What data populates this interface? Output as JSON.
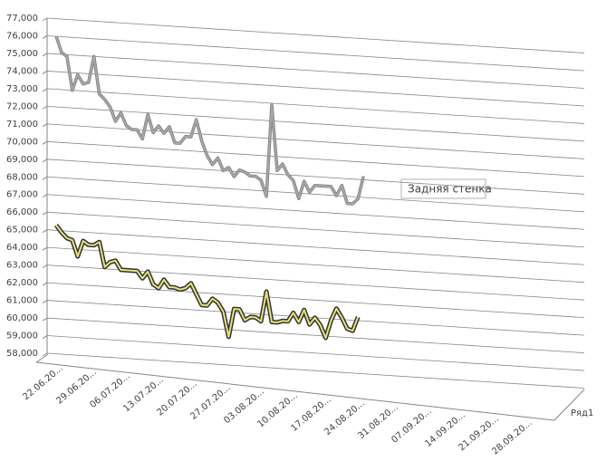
{
  "chart_data": {
    "type": "line",
    "annotation": "Задняя стенка",
    "categories": [
      "22.06.20...",
      null,
      null,
      null,
      null,
      null,
      null,
      "29.06.20...",
      null,
      null,
      null,
      null,
      null,
      null,
      "06.07.20...",
      null,
      null,
      null,
      null,
      null,
      null,
      "13.07.20...",
      null,
      null,
      null,
      null,
      null,
      null,
      "20.07.20...",
      null,
      null,
      null,
      null,
      null,
      null,
      "27.07.20...",
      null,
      null,
      null,
      null,
      null,
      null,
      "03.08.20...",
      null,
      null,
      null,
      null,
      null,
      null,
      "10.08.20...",
      null,
      null,
      null,
      null,
      null,
      null,
      "17.08.20...",
      null,
      null,
      null,
      null,
      null,
      null,
      "24.08.20...",
      null,
      null,
      null,
      null,
      null,
      null,
      "31.08.20...",
      null,
      null,
      null,
      null,
      null,
      null,
      "07.09.20...",
      null,
      null,
      null,
      null,
      null,
      null,
      "14.09.20...",
      null,
      null,
      null,
      null,
      null,
      null,
      "21.09.20...",
      null,
      null,
      null,
      null,
      null,
      null,
      "28.09.20..."
    ],
    "series": [
      {
        "color": "#a6a6a6",
        "values": [
          76000,
          75100,
          74900,
          73000,
          73900,
          73400,
          73500,
          75000,
          72900,
          72600,
          72200,
          71400,
          71900,
          71200,
          71000,
          71000,
          70500,
          71900,
          70900,
          71300,
          70900,
          71300,
          70400,
          70400,
          70800,
          70800,
          71800,
          70600,
          69800,
          69300,
          69700,
          69000,
          69200,
          68700,
          69100,
          69000,
          68800,
          68800,
          68600,
          67700,
          72900,
          69200,
          69600,
          69000,
          68700,
          67700,
          68700,
          68100,
          68500,
          68500,
          68500,
          68500,
          68000,
          68600,
          67600,
          67600,
          67900,
          69200,
          null,
          null,
          null,
          null,
          null,
          null,
          null,
          null,
          null,
          null,
          null,
          null,
          null,
          null,
          null,
          null,
          null,
          null,
          null,
          null,
          null,
          null,
          null,
          null,
          null,
          null,
          null,
          null,
          null,
          null,
          null,
          null,
          null,
          null,
          null,
          null,
          null,
          null,
          null,
          null,
          null
        ]
      },
      {
        "name": "Ряд1",
        "color": "#e8e27a",
        "values": [
          65300,
          64900,
          64600,
          64500,
          63600,
          64500,
          64300,
          64300,
          64500,
          63100,
          63400,
          63500,
          63000,
          63000,
          63000,
          63000,
          62600,
          63000,
          62300,
          62100,
          62600,
          62200,
          62200,
          62100,
          62200,
          62500,
          61900,
          61300,
          61300,
          61700,
          61500,
          61000,
          59600,
          61200,
          61200,
          60600,
          60800,
          60800,
          60600,
          62300,
          60600,
          60600,
          60700,
          60700,
          61200,
          60700,
          61400,
          60600,
          61000,
          60600,
          59900,
          60900,
          61600,
          61100,
          60500,
          60400,
          61200,
          null,
          null,
          null,
          null,
          null,
          null,
          null,
          null,
          null,
          null,
          null,
          null,
          null,
          null,
          null,
          null,
          null,
          null,
          null,
          null,
          null,
          null,
          null,
          null,
          null,
          null,
          null,
          null,
          null,
          null,
          null,
          null,
          null,
          null,
          null,
          null,
          null,
          null,
          null,
          null,
          null,
          null
        ]
      }
    ],
    "ylim": [
      58000,
      77000
    ],
    "yticks": [
      {
        "value": 58000,
        "label": "58,000"
      },
      {
        "value": 59000,
        "label": "59,000"
      },
      {
        "value": 60000,
        "label": "60,000"
      },
      {
        "value": 61000,
        "label": "61,000"
      },
      {
        "value": 62000,
        "label": "62,000"
      },
      {
        "value": 63000,
        "label": "63,000"
      },
      {
        "value": 64000,
        "label": "64,000"
      },
      {
        "value": 65000,
        "label": "65,000"
      },
      {
        "value": 66000,
        "label": "66,000"
      },
      {
        "value": 67000,
        "label": "67,000"
      },
      {
        "value": 68000,
        "label": "68,000"
      },
      {
        "value": 69000,
        "label": "69,000"
      },
      {
        "value": 70000,
        "label": "70,000"
      },
      {
        "value": 71000,
        "label": "71,000"
      },
      {
        "value": 72000,
        "label": "72,000"
      },
      {
        "value": 73000,
        "label": "73,000"
      },
      {
        "value": 74000,
        "label": "74,000"
      },
      {
        "value": 75000,
        "label": "75,000"
      },
      {
        "value": 76000,
        "label": "76,000"
      },
      {
        "value": 77000,
        "label": "77,000"
      }
    ],
    "grid": true
  }
}
